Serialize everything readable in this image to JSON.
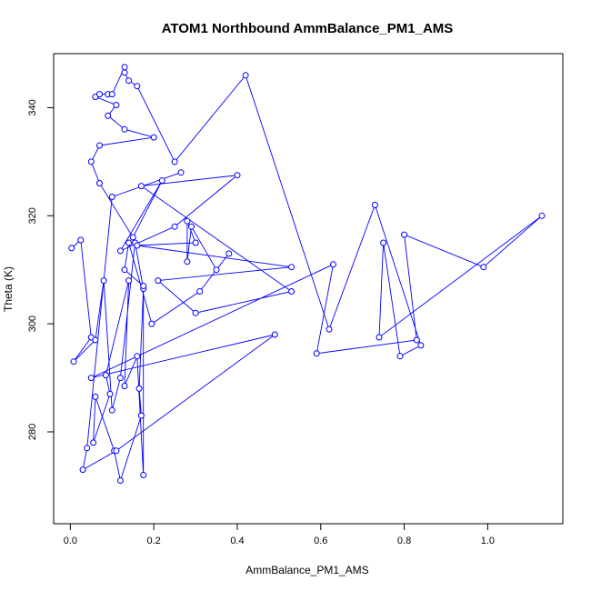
{
  "chart_data": {
    "type": "line",
    "title": "ATOM1 Northbound AmmBalance_PM1_AMS",
    "xlabel": "AmmBalance_PM1_AMS",
    "ylabel": "Theta (K)",
    "xlim": [
      -0.04,
      1.18
    ],
    "ylim": [
      263,
      350
    ],
    "x_ticks": [
      0.0,
      0.2,
      0.4,
      0.6,
      0.8,
      1.0
    ],
    "x_tick_labels": [
      "0.0",
      "0.2",
      "0.4",
      "0.6",
      "0.8",
      "1.0"
    ],
    "y_ticks": [
      280,
      300,
      320,
      340
    ],
    "y_tick_labels": [
      "280",
      "300",
      "320",
      "340"
    ],
    "grid": false,
    "line_color": "#0000ff",
    "marker": "open-circle",
    "series": [
      {
        "points": [
          [
            0.003,
            314.0
          ],
          [
            0.025,
            315.5
          ],
          [
            0.05,
            297.5
          ],
          [
            0.008,
            293.0
          ],
          [
            0.06,
            297.0
          ],
          [
            0.08,
            308.0
          ],
          [
            0.1,
            284.0
          ],
          [
            0.12,
            290.0
          ],
          [
            0.155,
            315.0
          ],
          [
            0.175,
            306.5
          ],
          [
            0.165,
            288.0
          ],
          [
            0.17,
            283.0
          ],
          [
            0.12,
            271.0
          ],
          [
            0.105,
            276.5
          ],
          [
            0.06,
            286.5
          ],
          [
            0.055,
            278.0
          ],
          [
            0.095,
            287.0
          ],
          [
            0.085,
            290.5
          ],
          [
            0.14,
            308.0
          ],
          [
            0.13,
            288.5
          ],
          [
            0.16,
            294.0
          ],
          [
            0.175,
            272.0
          ],
          [
            0.175,
            307.0
          ],
          [
            0.13,
            310.0
          ],
          [
            0.14,
            315.0
          ],
          [
            0.195,
            300.0
          ],
          [
            0.31,
            306.0
          ],
          [
            0.38,
            313.0
          ],
          [
            0.35,
            310.0
          ],
          [
            0.29,
            318.0
          ],
          [
            0.28,
            311.5
          ],
          [
            0.28,
            319.0
          ],
          [
            0.3,
            315.0
          ],
          [
            0.16,
            314.5
          ],
          [
            0.53,
            310.5
          ],
          [
            0.21,
            308.0
          ],
          [
            0.3,
            302.0
          ],
          [
            0.53,
            306.0
          ],
          [
            0.17,
            325.5
          ],
          [
            0.4,
            327.5
          ],
          [
            0.25,
            318.0
          ],
          [
            0.12,
            313.5
          ],
          [
            0.22,
            326.5
          ],
          [
            0.15,
            316.0
          ],
          [
            0.07,
            326.0
          ],
          [
            0.05,
            330.0
          ],
          [
            0.07,
            333.0
          ],
          [
            0.2,
            334.5
          ],
          [
            0.13,
            336.0
          ],
          [
            0.09,
            338.5
          ],
          [
            0.11,
            340.5
          ],
          [
            0.06,
            342.0
          ],
          [
            0.07,
            342.5
          ],
          [
            0.09,
            342.5
          ],
          [
            0.1,
            342.5
          ],
          [
            0.13,
            347.5
          ],
          [
            0.13,
            346.5
          ],
          [
            0.14,
            345.0
          ],
          [
            0.16,
            344.0
          ],
          [
            0.25,
            330.0
          ],
          [
            0.42,
            346.0
          ],
          [
            0.62,
            299.0
          ],
          [
            0.73,
            322.0
          ],
          [
            0.84,
            296.0
          ],
          [
            0.79,
            294.0
          ],
          [
            0.75,
            315.0
          ],
          [
            0.74,
            297.5
          ],
          [
            1.13,
            320.0
          ],
          [
            0.99,
            310.5
          ],
          [
            0.8,
            316.5
          ],
          [
            0.83,
            297.0
          ],
          [
            0.59,
            294.5
          ],
          [
            0.63,
            311.0
          ],
          [
            0.05,
            290.0
          ],
          [
            0.49,
            298.0
          ],
          [
            0.11,
            276.5
          ],
          [
            0.03,
            273.0
          ],
          [
            0.04,
            277.0
          ],
          [
            0.1,
            323.5
          ],
          [
            0.265,
            328.0
          ]
        ]
      }
    ]
  }
}
